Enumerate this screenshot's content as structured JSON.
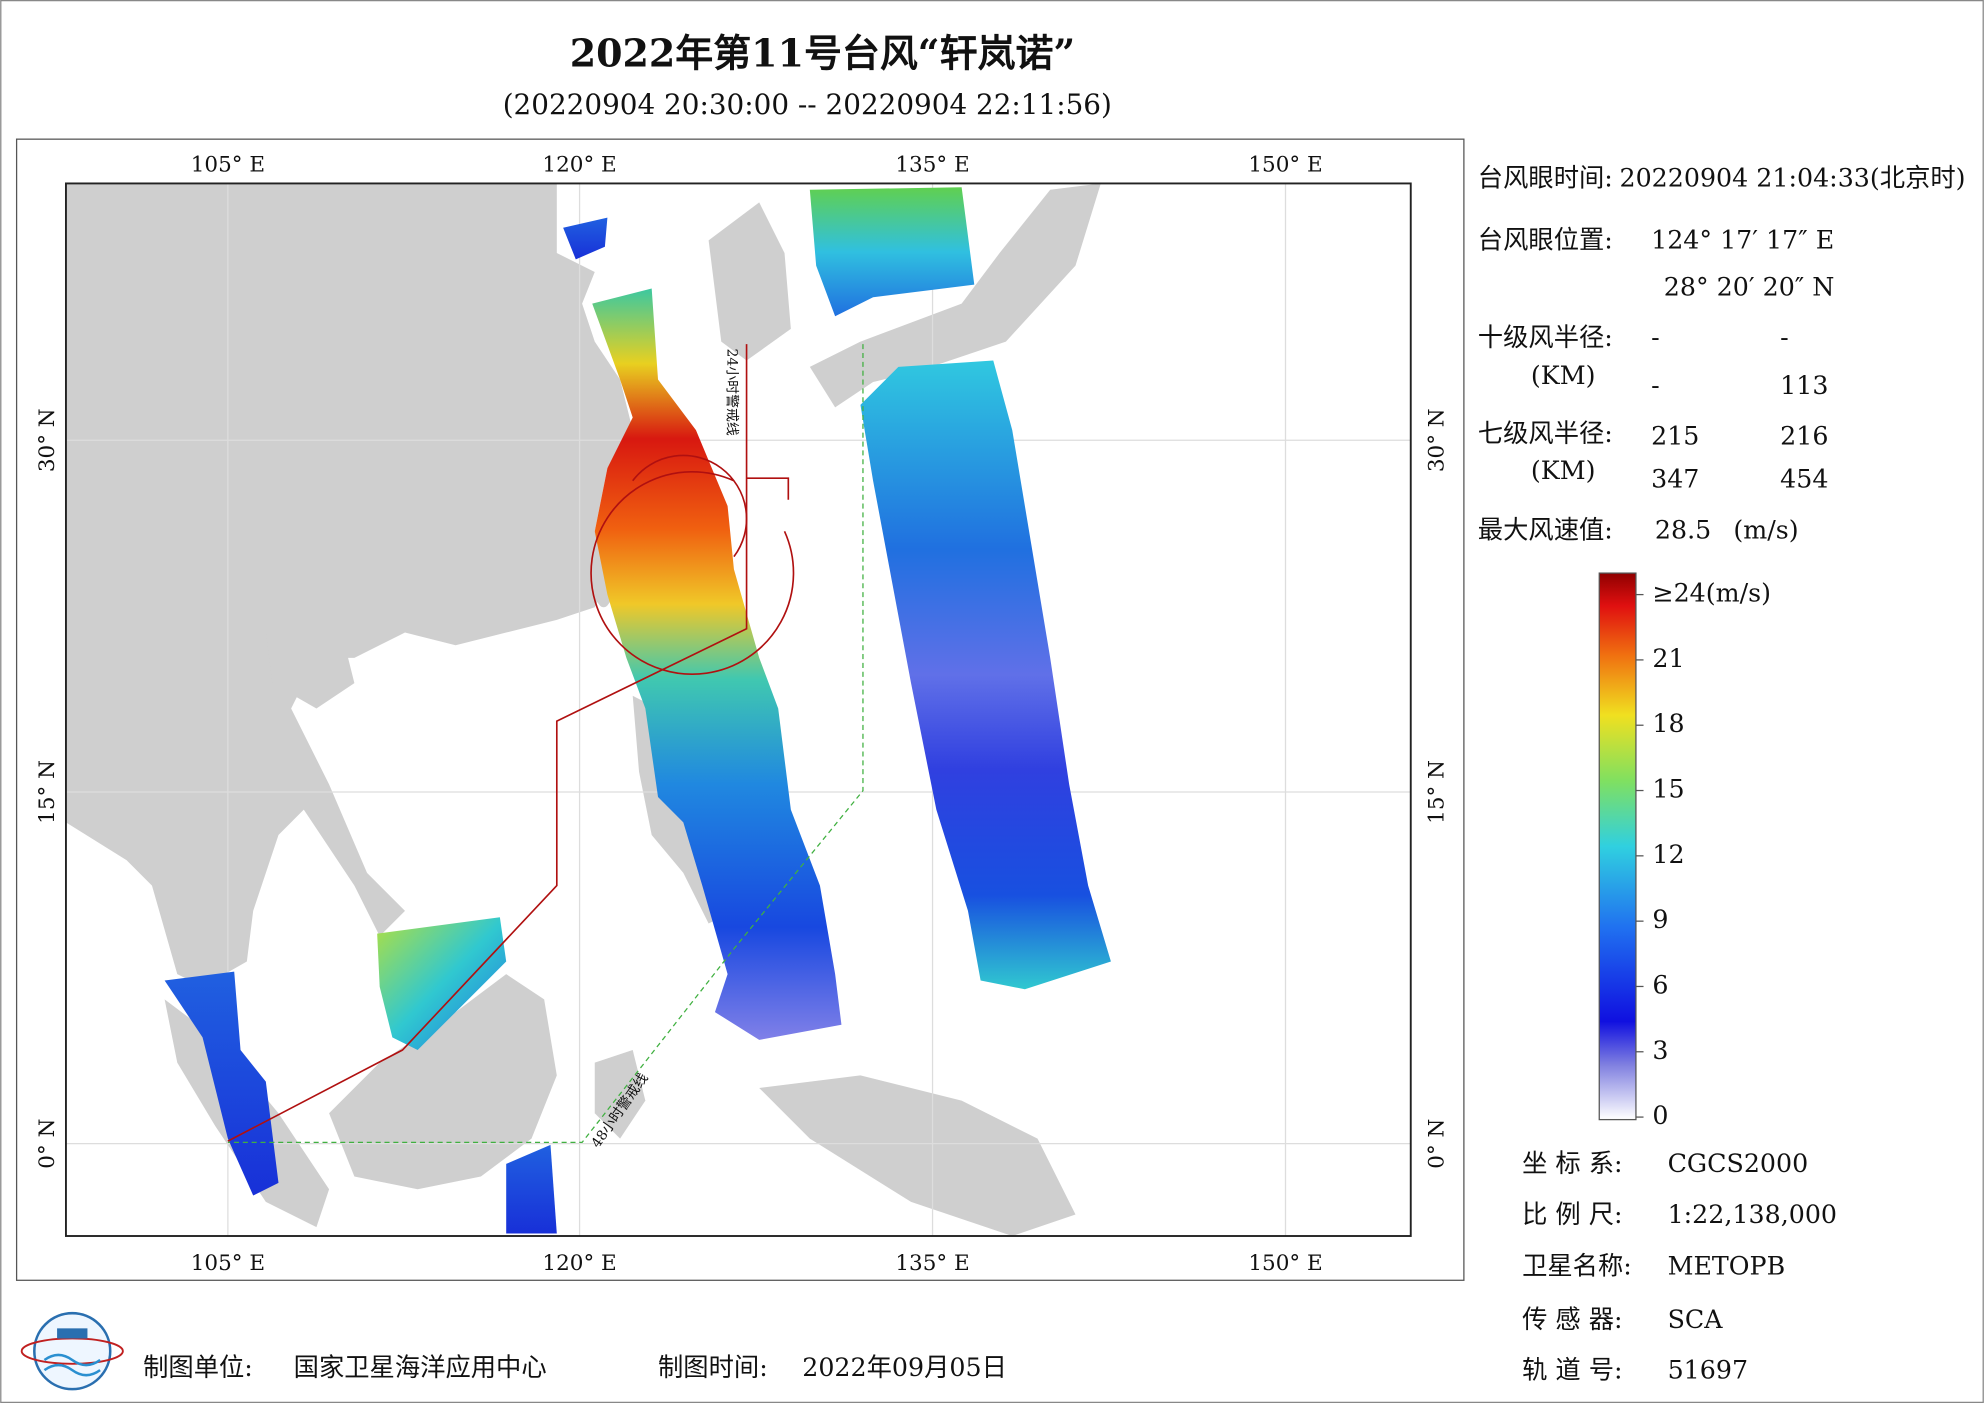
{
  "title": "2022年第11号台风“轩岚诺”",
  "subtitle": "(20220904 20:30:00 -- 20220904 22:11:56)",
  "map": {
    "top_labels": [
      "105° E",
      "120° E",
      "135° E",
      "150° E"
    ],
    "bottom_labels": [
      "105° E",
      "120° E",
      "135° E",
      "150° E"
    ],
    "left_labels": [
      "30° N",
      "15° N",
      "0° N"
    ],
    "right_labels": [
      "30° N",
      "15° N",
      "0° N"
    ],
    "warning_24h": "24小时警戒线",
    "warning_48h": "48小时警戒线"
  },
  "info": {
    "eye_time_label": "台风眼时间:",
    "eye_time": "20220904 21:04:33(北京时)",
    "eye_pos_label": "台风眼位置:",
    "eye_lon": "124° 17′ 17″ E",
    "eye_lat": "28° 20′ 20″ N",
    "r10_label": "十级风半径:",
    "r10_unit": "(KM)",
    "r10": [
      "-",
      "-",
      "-",
      "113"
    ],
    "r7_label": "七级风半径:",
    "r7_unit": "(KM)",
    "r7": [
      "215",
      "216",
      "347",
      "454"
    ],
    "max_label": "最大风速值:",
    "max_value": "28.5",
    "max_unit": "(m/s)"
  },
  "colorbar": {
    "ticks": [
      {
        "value": 24,
        "label": "≥24(m/s)"
      },
      21,
      18,
      15,
      12,
      9,
      6,
      3,
      0
    ]
  },
  "meta": [
    [
      "坐 标 系:",
      "CGCS2000"
    ],
    [
      "比 例 尺:",
      "1:22,138,000"
    ],
    [
      "卫星名称:",
      "METOPB"
    ],
    [
      "传 感 器:",
      "SCA"
    ],
    [
      "轨 道 号:",
      "51697"
    ]
  ],
  "footer": {
    "unit_label": "制图单位:",
    "unit": "国家卫星海洋应用中心",
    "time_label": "制图时间:",
    "time": "2022年09月05日"
  }
}
